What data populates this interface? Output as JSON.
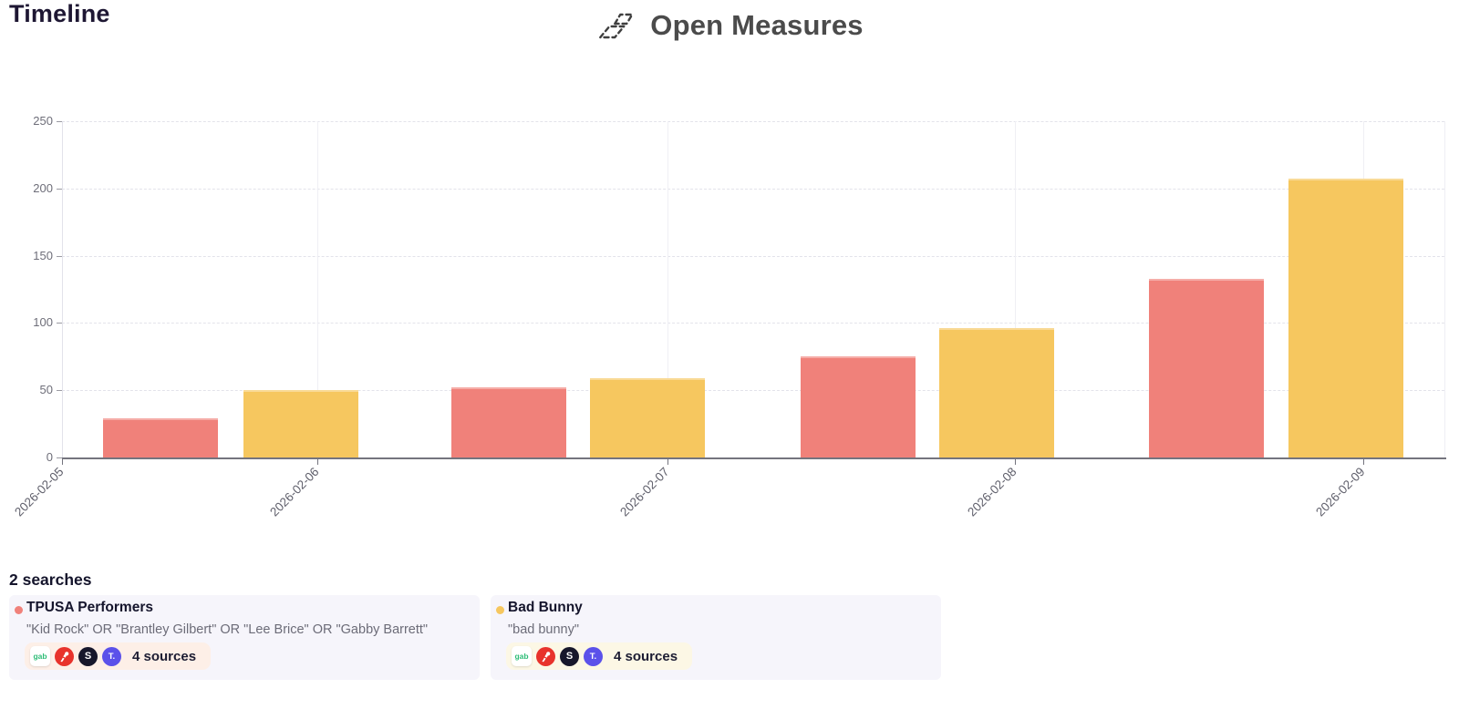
{
  "page": {
    "title": "Timeline"
  },
  "header": {
    "brand": "Open Measures",
    "logo_icon": "two-dashed-parallelograms",
    "brand_color": "#4b4b4b"
  },
  "chart_data": {
    "type": "bar",
    "title": "Timeline",
    "xlabel": "",
    "ylabel": "",
    "grid": true,
    "legend_position": "none (series identified by colored dots in search cards below)",
    "x_tick_labels": [
      "2026-02-05",
      "2026-02-06",
      "2026-02-07",
      "2026-02-08",
      "2026-02-09"
    ],
    "y_ticks": [
      0,
      50,
      100,
      150,
      200,
      250
    ],
    "ylim": [
      0,
      250
    ],
    "categories": [
      "2026-02-05",
      "2026-02-06",
      "2026-02-07",
      "2026-02-08"
    ],
    "series": [
      {
        "name": "TPUSA Performers",
        "color": "#f0817a",
        "values": [
          29,
          52,
          75,
          133
        ]
      },
      {
        "name": "Bad Bunny",
        "color": "#f6c75f",
        "values": [
          50,
          59,
          96,
          207
        ]
      }
    ]
  },
  "searches": {
    "heading": "2 searches",
    "icon_glyphs": {
      "gab": "gab",
      "scored": "S",
      "truth_social": "T."
    },
    "cards": [
      {
        "name": "TPUSA Performers",
        "dot_color": "#f0817a",
        "query": "\"Kid Rock\" OR \"Brantley Gilbert\" OR \"Lee Brice\" OR \"Gabby Barrett\"",
        "sources_label": "4 sources",
        "source_icons": [
          "gab",
          "gettr",
          "scored",
          "truth-social"
        ],
        "pill_color": "#fdefe7"
      },
      {
        "name": "Bad Bunny",
        "dot_color": "#f6c75f",
        "query": "\"bad bunny\"",
        "sources_label": "4 sources",
        "source_icons": [
          "gab",
          "gettr",
          "scored",
          "truth-social"
        ],
        "pill_color": "#fcf7e5"
      }
    ]
  }
}
